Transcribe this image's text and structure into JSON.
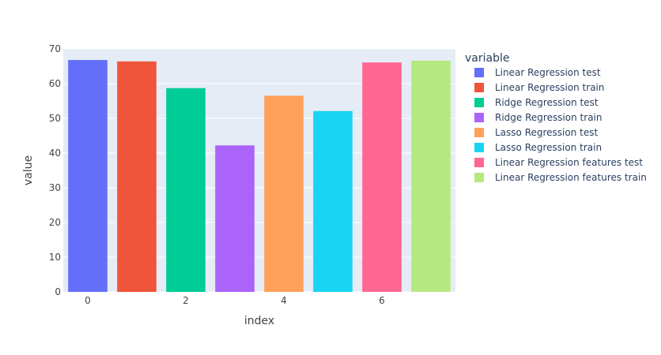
{
  "chart_data": {
    "type": "bar",
    "xlabel": "index",
    "ylabel": "value",
    "xlim": [
      -0.5,
      7.5
    ],
    "ylim": [
      0,
      70
    ],
    "x_ticks": [
      0,
      2,
      4,
      6
    ],
    "y_ticks": [
      0,
      10,
      20,
      30,
      40,
      50,
      60,
      70
    ],
    "grid": true,
    "plot_bgcolor": "#e5ecf6",
    "legend": {
      "title": "variable",
      "placement": "right"
    },
    "series": [
      {
        "name": "Linear Regression test",
        "x": 0,
        "value": 66.8,
        "color": "#636efa"
      },
      {
        "name": "Linear Regression train",
        "x": 1,
        "value": 66.4,
        "color": "#ef553b"
      },
      {
        "name": "Ridge Regression test",
        "x": 2,
        "value": 58.7,
        "color": "#00cc96"
      },
      {
        "name": "Ridge Regression train",
        "x": 3,
        "value": 42.2,
        "color": "#ab63fa"
      },
      {
        "name": "Lasso Regression test",
        "x": 4,
        "value": 56.5,
        "color": "#ffa15a"
      },
      {
        "name": "Lasso Regression train",
        "x": 5,
        "value": 52.1,
        "color": "#19d3f3"
      },
      {
        "name": "Linear Regression features test",
        "x": 6,
        "value": 66.1,
        "color": "#ff6692"
      },
      {
        "name": "Linear Regression features train",
        "x": 7,
        "value": 66.6,
        "color": "#b6e880"
      }
    ]
  }
}
